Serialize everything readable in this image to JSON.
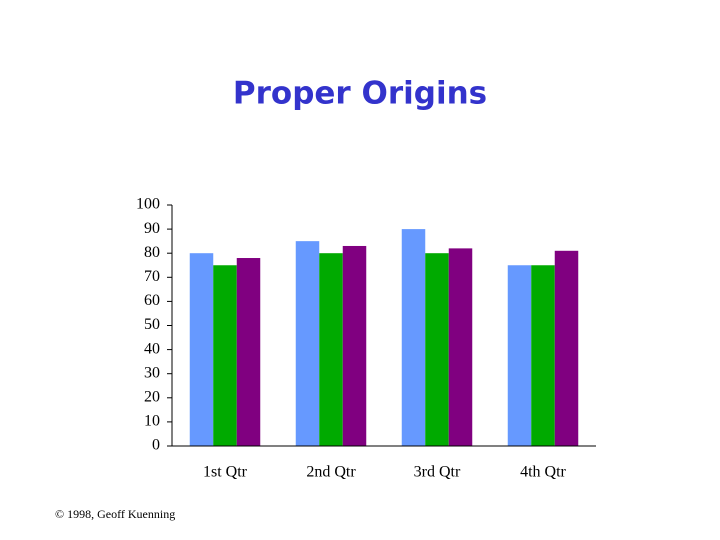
{
  "chart_data": {
    "type": "bar",
    "title": "Proper Origins",
    "categories": [
      "1st Qtr",
      "2nd Qtr",
      "3rd Qtr",
      "4th Qtr"
    ],
    "series": [
      {
        "color": "#6699ff",
        "values": [
          80,
          85,
          90,
          75
        ]
      },
      {
        "color": "#00aa00",
        "values": [
          75,
          80,
          80,
          75
        ]
      },
      {
        "color": "#800080",
        "values": [
          78,
          83,
          82,
          81
        ]
      }
    ],
    "ylim": [
      0,
      100
    ],
    "yticks": [
      0,
      10,
      20,
      30,
      40,
      50,
      60,
      70,
      80,
      90,
      100
    ],
    "grid": false
  },
  "footer": "© 1998, Geoff Kuenning"
}
